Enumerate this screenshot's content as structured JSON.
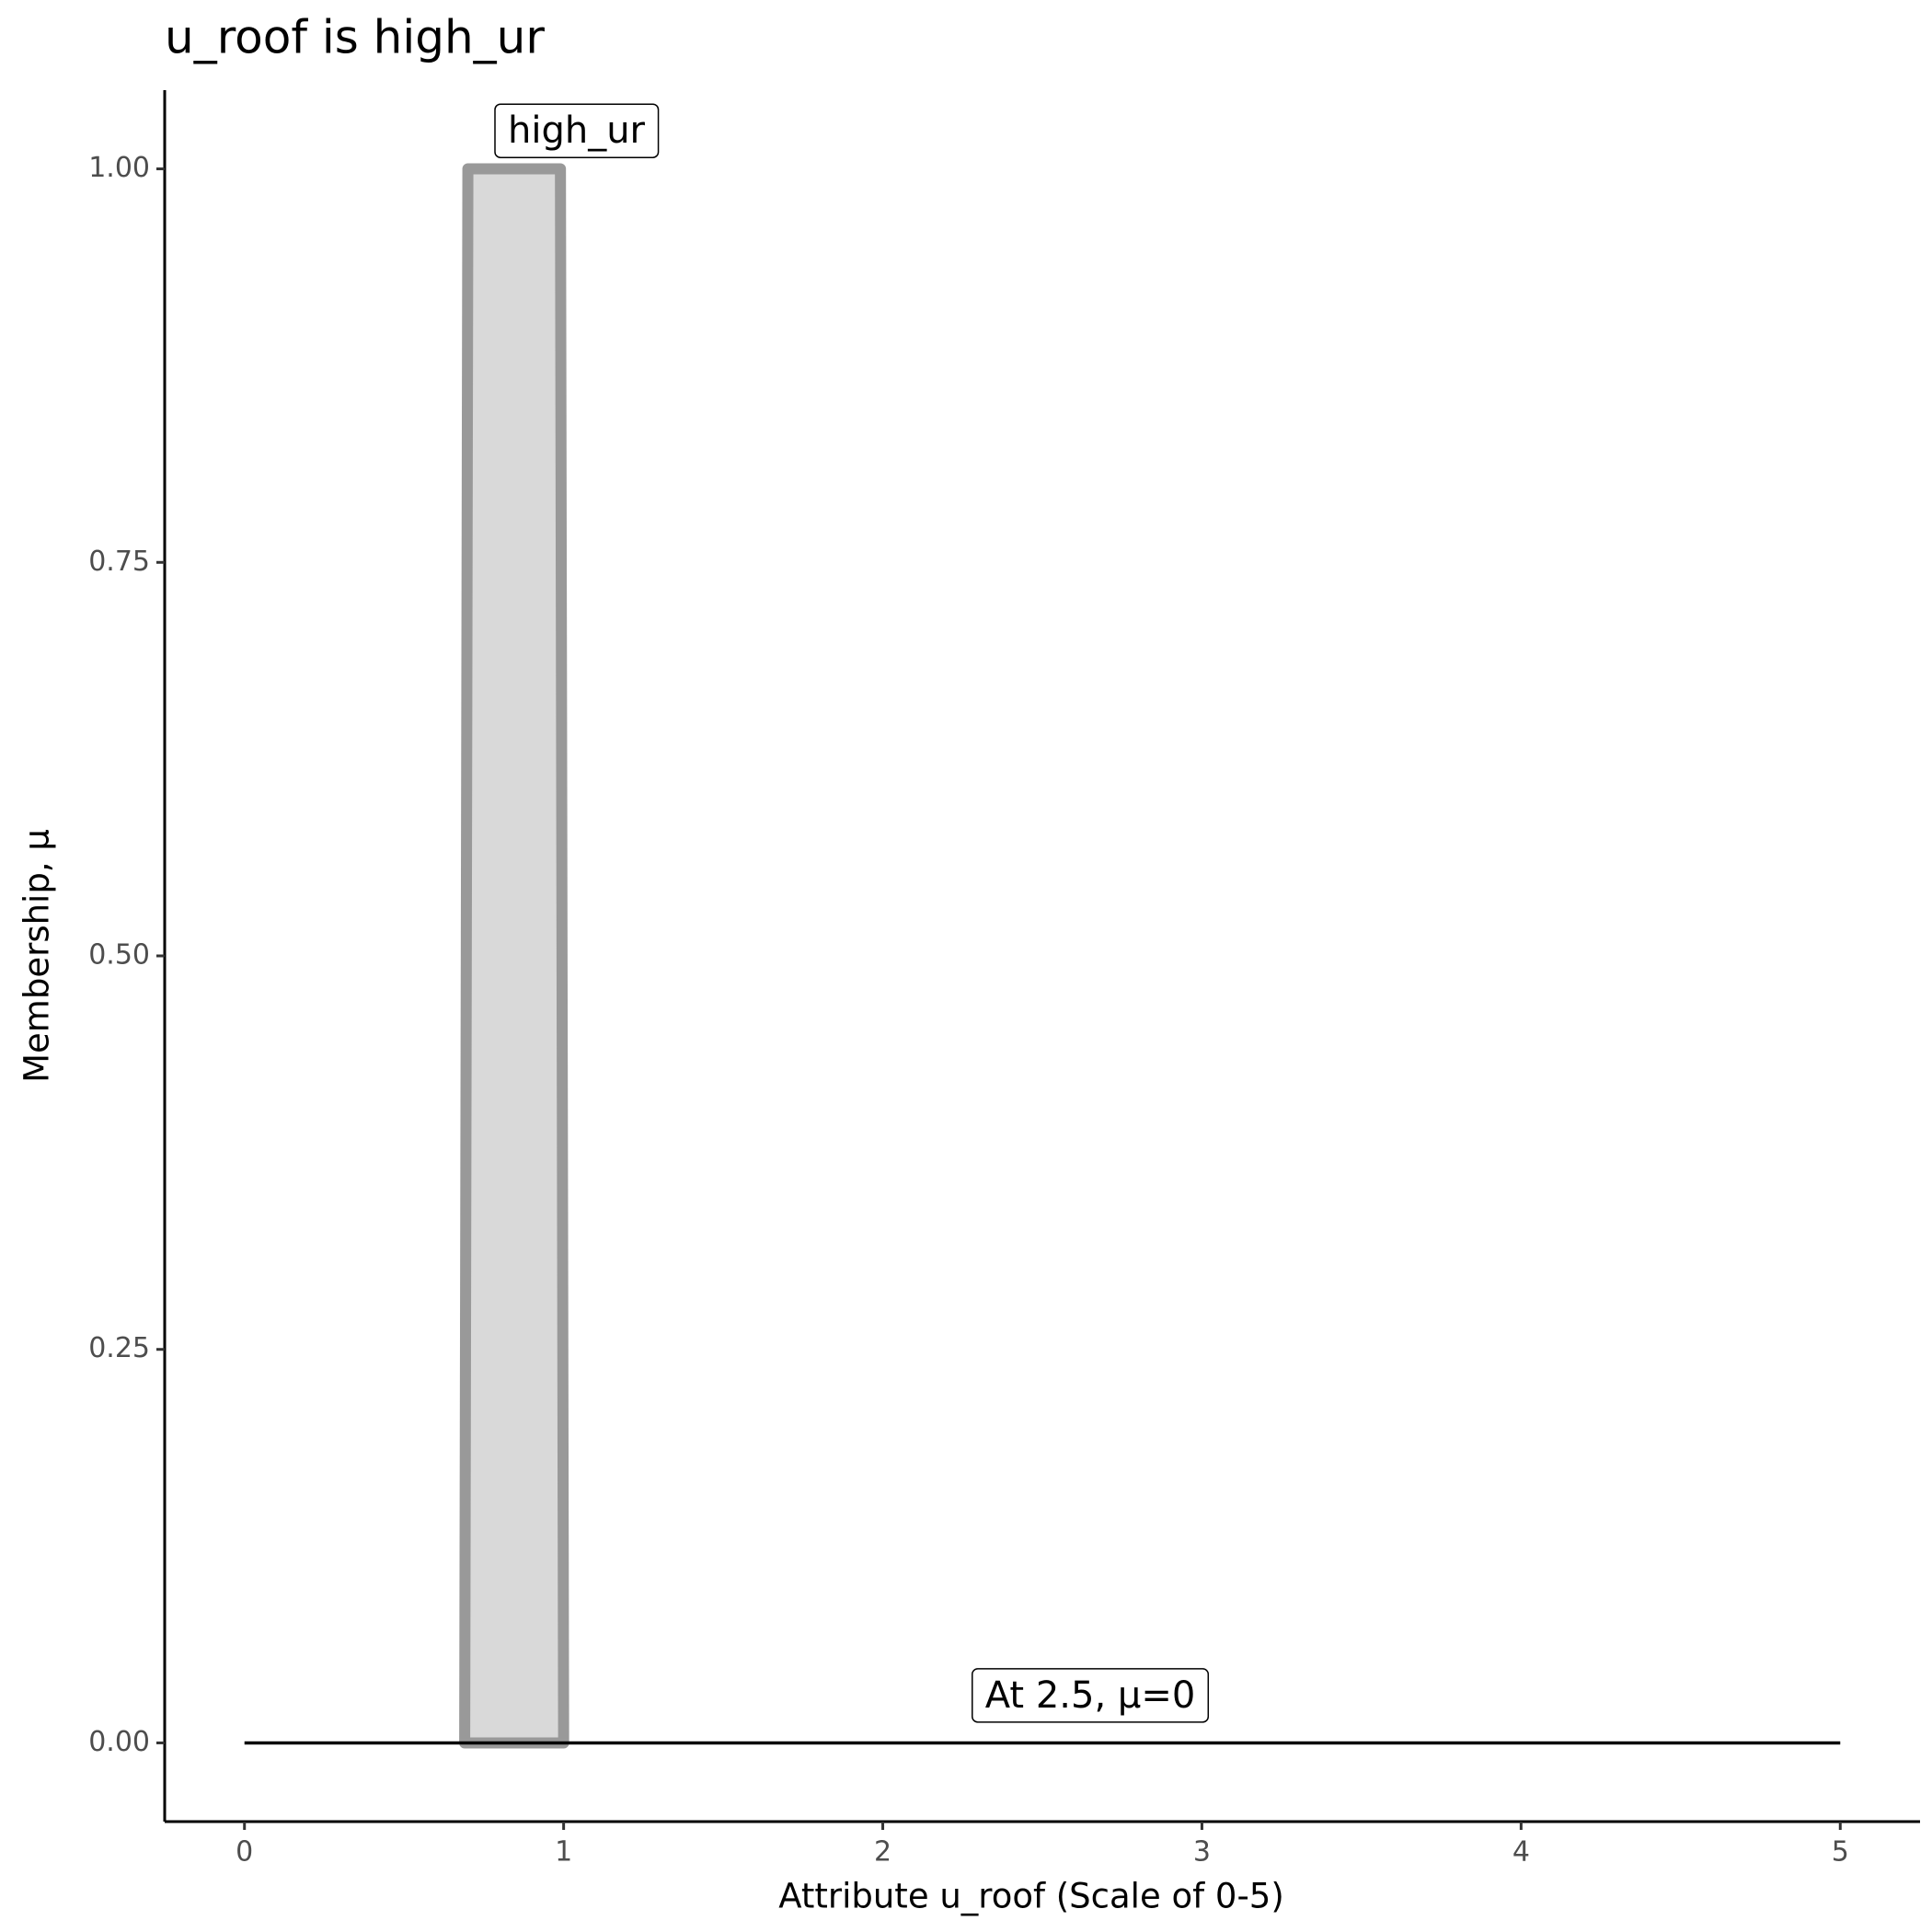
{
  "chart_data": {
    "type": "area",
    "title": "u_roof is high_ur",
    "x_label": "Attribute u_roof (Scale of 0-5)",
    "y_label": "Membership, μ",
    "xlim": [
      -0.25,
      5.25
    ],
    "ylim": [
      -0.05,
      1.05
    ],
    "xticks": [
      0,
      1,
      2,
      3,
      4,
      5
    ],
    "yticks": [
      {
        "value": 0,
        "label": "0.00"
      },
      {
        "value": 0.25,
        "label": "0.25"
      },
      {
        "value": 0.5,
        "label": "0.50"
      },
      {
        "value": 0.75,
        "label": "0.75"
      },
      {
        "value": 1,
        "label": "1.00"
      }
    ],
    "grid": false,
    "series": [
      {
        "color": "#999999",
        "fill": "#d9d9d9",
        "x": [
          0.69,
          0.7,
          0.99,
          1.0
        ],
        "values": [
          0,
          1,
          1,
          0
        ]
      },
      {
        "color": "#000000",
        "x": [
          0,
          5
        ],
        "values": [
          0,
          0
        ]
      }
    ],
    "annotations": [
      {
        "text": "high_ur",
        "x": 1.04,
        "y": 1.023
      },
      {
        "text": "At 2.5, μ=0",
        "x": 2.65,
        "y": 0.029
      }
    ]
  }
}
